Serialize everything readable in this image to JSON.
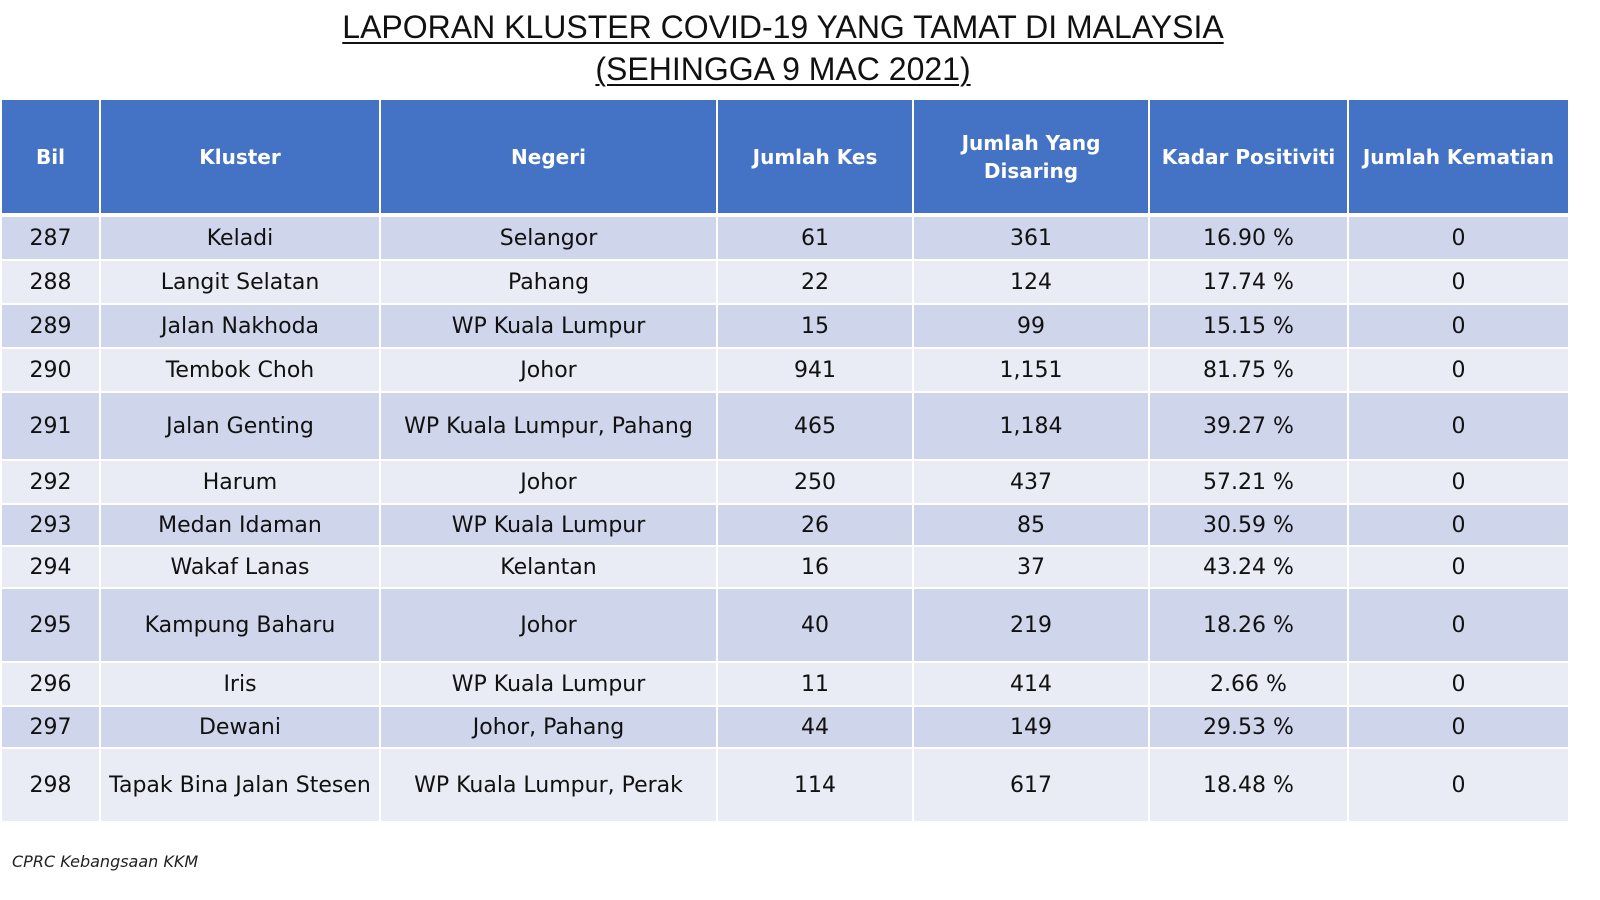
{
  "title": {
    "line1": "LAPORAN KLUSTER COVID-19 YANG TAMAT DI MALAYSIA",
    "line2": "(SEHINGGA  9 MAC 2021)"
  },
  "table": {
    "headers": {
      "bil": "Bil",
      "kluster": "Kluster",
      "negeri": "Negeri",
      "jumlah_kes": "Jumlah Kes",
      "jumlah_disaring": "Jumlah Yang Disaring",
      "kadar_positiviti": "Kadar Positiviti",
      "jumlah_kematian": "Jumlah Kematian"
    },
    "rows": [
      {
        "bil": "287",
        "kluster": "Keladi",
        "negeri": "Selangor",
        "kes": "61",
        "disaring": "361",
        "kadar": "16.90 %",
        "kematian": "0"
      },
      {
        "bil": "288",
        "kluster": "Langit Selatan",
        "negeri": "Pahang",
        "kes": "22",
        "disaring": "124",
        "kadar": "17.74 %",
        "kematian": "0"
      },
      {
        "bil": "289",
        "kluster": "Jalan Nakhoda",
        "negeri": "WP Kuala Lumpur",
        "kes": "15",
        "disaring": "99",
        "kadar": "15.15 %",
        "kematian": "0"
      },
      {
        "bil": "290",
        "kluster": "Tembok Choh",
        "negeri": "Johor",
        "kes": "941",
        "disaring": "1,151",
        "kadar": "81.75 %",
        "kematian": "0"
      },
      {
        "bil": "291",
        "kluster": "Jalan Genting",
        "negeri": "WP Kuala Lumpur, Pahang",
        "kes": "465",
        "disaring": "1,184",
        "kadar": "39.27 %",
        "kematian": "0"
      },
      {
        "bil": "292",
        "kluster": "Harum",
        "negeri": "Johor",
        "kes": "250",
        "disaring": "437",
        "kadar": "57.21 %",
        "kematian": "0"
      },
      {
        "bil": "293",
        "kluster": "Medan Idaman",
        "negeri": "WP Kuala Lumpur",
        "kes": "26",
        "disaring": "85",
        "kadar": "30.59 %",
        "kematian": "0"
      },
      {
        "bil": "294",
        "kluster": "Wakaf Lanas",
        "negeri": "Kelantan",
        "kes": "16",
        "disaring": "37",
        "kadar": "43.24 %",
        "kematian": "0"
      },
      {
        "bil": "295",
        "kluster": "Kampung Baharu",
        "negeri": "Johor",
        "kes": "40",
        "disaring": "219",
        "kadar": "18.26 %",
        "kematian": "0"
      },
      {
        "bil": "296",
        "kluster": "Iris",
        "negeri": "WP Kuala Lumpur",
        "kes": "11",
        "disaring": "414",
        "kadar": "2.66 %",
        "kematian": "0"
      },
      {
        "bil": "297",
        "kluster": "Dewani",
        "negeri": "Johor, Pahang",
        "kes": "44",
        "disaring": "149",
        "kadar": "29.53 %",
        "kematian": "0"
      },
      {
        "bil": "298",
        "kluster": "Tapak Bina Jalan Stesen",
        "negeri": "WP Kuala Lumpur, Perak",
        "kes": "114",
        "disaring": "617",
        "kadar": "18.48 %",
        "kematian": "0"
      }
    ]
  },
  "footer": {
    "source": "CPRC Kebangsaan KKM"
  },
  "colors": {
    "header_bg": "#4472c4",
    "row_odd": "#cfd5ea",
    "row_even": "#e9ebf5"
  }
}
